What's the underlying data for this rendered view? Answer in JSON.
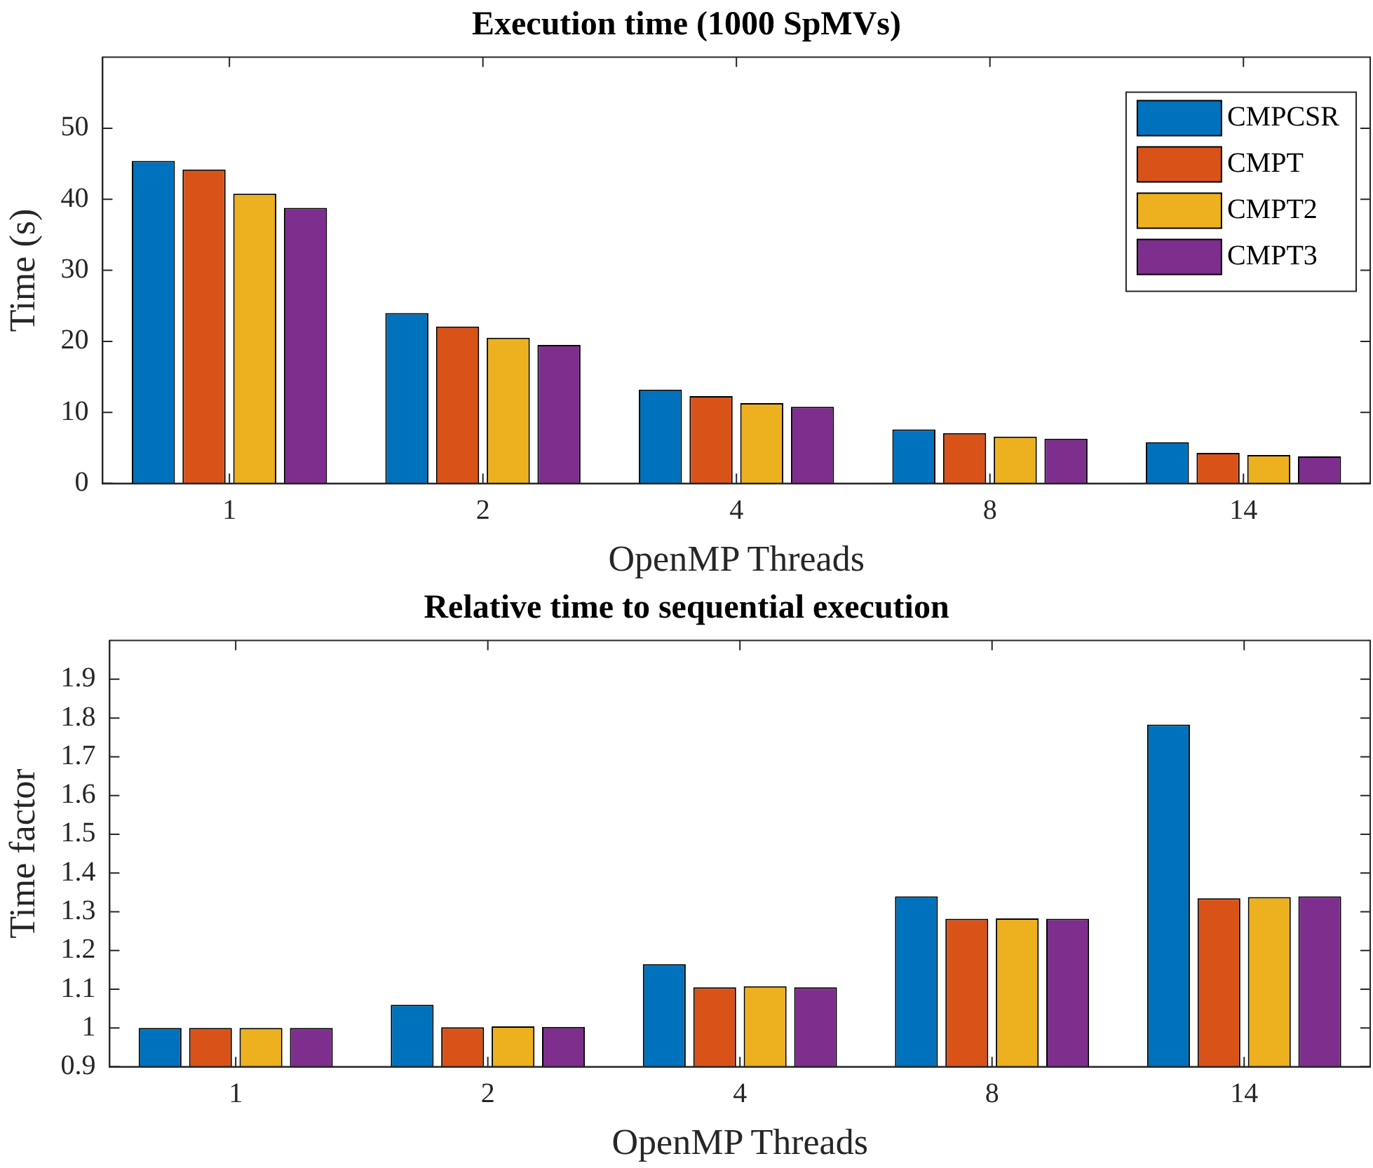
{
  "chart_data": [
    {
      "type": "bar",
      "title": "Execution time (1000 SpMVs)",
      "xlabel": "OpenMP Threads",
      "ylabel": "Time (s)",
      "categories": [
        "1",
        "2",
        "4",
        "8",
        "14"
      ],
      "series": [
        {
          "name": "CMPCSR",
          "color": "#0072bd",
          "values": [
            45.4,
            24.0,
            13.2,
            7.6,
            5.8
          ]
        },
        {
          "name": "CMPT",
          "color": "#d95319",
          "values": [
            44.2,
            22.1,
            12.3,
            7.1,
            4.3
          ]
        },
        {
          "name": "CMPT2",
          "color": "#edb120",
          "values": [
            40.8,
            20.5,
            11.3,
            6.6,
            4.0
          ]
        },
        {
          "name": "CMPT3",
          "color": "#7e2f8e",
          "values": [
            38.8,
            19.5,
            10.8,
            6.3,
            3.8
          ]
        }
      ],
      "ylim": [
        0,
        60
      ],
      "yticks": [
        0,
        10,
        20,
        30,
        40,
        50
      ],
      "grid": false,
      "legend": "top right"
    },
    {
      "type": "bar",
      "title": "Relative time to sequential execution",
      "xlabel": "OpenMP Threads",
      "ylabel": "Time factor",
      "categories": [
        "1",
        "2",
        "4",
        "8",
        "14"
      ],
      "series": [
        {
          "color": "#0072bd",
          "values": [
            1.0,
            1.06,
            1.165,
            1.34,
            1.783
          ]
        },
        {
          "color": "#d95319",
          "values": [
            1.0,
            1.002,
            1.105,
            1.282,
            1.335
          ]
        },
        {
          "color": "#edb120",
          "values": [
            1.0,
            1.004,
            1.108,
            1.283,
            1.338
          ]
        },
        {
          "color": "#7e2f8e",
          "values": [
            1.0,
            1.003,
            1.105,
            1.282,
            1.34
          ]
        }
      ],
      "ylim": [
        0.9,
        2.0
      ],
      "yticks": [
        0.9,
        1,
        1.1,
        1.2,
        1.3,
        1.4,
        1.5,
        1.6,
        1.7,
        1.8,
        1.9
      ],
      "grid": false,
      "legend": false
    }
  ]
}
